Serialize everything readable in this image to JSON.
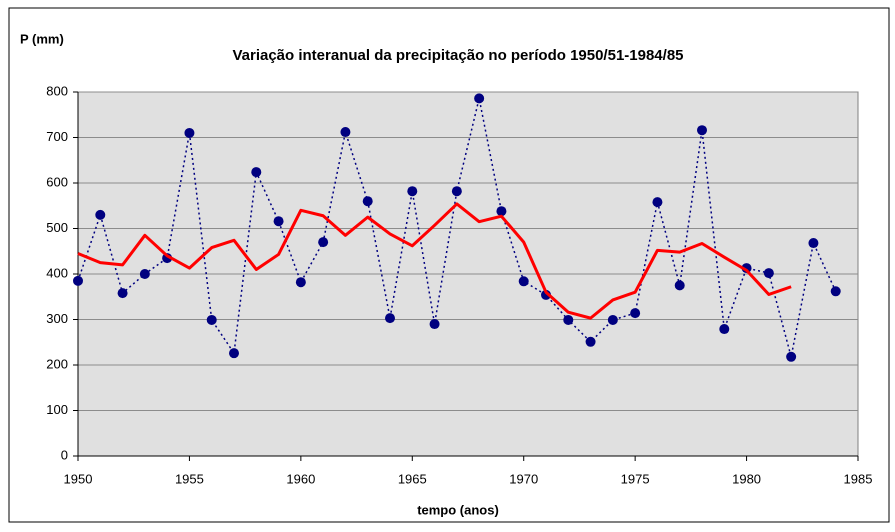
{
  "chart_data": {
    "type": "line",
    "title": "Variação interanual da precipitação no período 1950/51-1984/85",
    "ylabel": "P (mm)",
    "xlabel": "tempo (anos)",
    "x": [
      1950,
      1951,
      1952,
      1953,
      1954,
      1955,
      1956,
      1957,
      1958,
      1959,
      1960,
      1961,
      1962,
      1963,
      1964,
      1965,
      1966,
      1967,
      1968,
      1969,
      1970,
      1971,
      1972,
      1973,
      1974,
      1975,
      1976,
      1977,
      1978,
      1979,
      1980,
      1981,
      1982,
      1983,
      1984
    ],
    "series": [
      {
        "color": "#000080",
        "style": "dotted",
        "markers": true,
        "values": [
          385,
          530,
          358,
          400,
          435,
          710,
          299,
          226,
          624,
          516,
          382,
          470,
          712,
          560,
          303,
          582,
          290,
          582,
          786,
          538,
          384,
          354,
          299,
          251,
          299,
          314,
          558,
          375,
          716,
          279,
          413,
          402,
          218,
          468,
          362
        ]
      },
      {
        "color": "#ff0000",
        "style": "solid",
        "markers": false,
        "values": [
          445,
          425,
          420,
          485,
          440,
          413,
          458,
          474,
          410,
          443,
          540,
          528,
          485,
          525,
          488,
          462,
          507,
          554,
          515,
          527,
          470,
          360,
          316,
          303,
          343,
          360,
          452,
          448,
          467,
          437,
          408,
          355,
          372,
          null,
          null
        ]
      }
    ],
    "xlim": [
      1950,
      1985
    ],
    "xticks": [
      1950,
      1955,
      1960,
      1965,
      1970,
      1975,
      1980,
      1985
    ],
    "ylim": [
      0,
      800
    ],
    "yticks": [
      0,
      100,
      200,
      300,
      400,
      500,
      600,
      700,
      800
    ],
    "grid": true
  }
}
